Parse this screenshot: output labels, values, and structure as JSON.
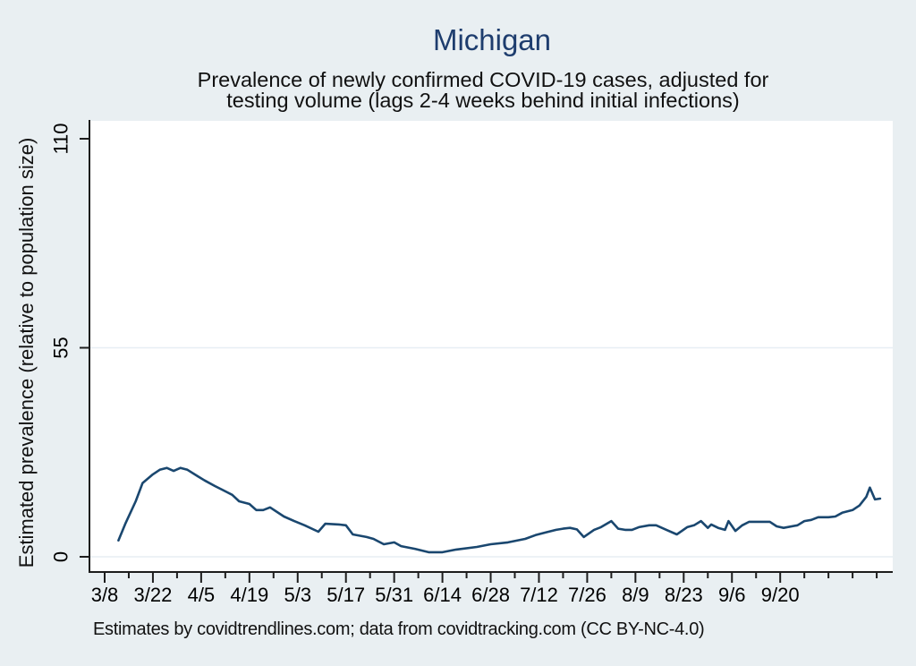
{
  "page": {
    "background_color": "#e9eff2",
    "plot_background_color": "#ffffff",
    "axis_color": "#1d1d1d",
    "grid_color": "#e7eef4"
  },
  "header": {
    "title": "Michigan",
    "title_color": "#1e3d6e",
    "subtitle_line1": "Prevalence of newly confirmed COVID-19 cases, adjusted for",
    "subtitle_line2": "testing volume (lags 2-4 weeks behind initial infections)"
  },
  "y_axis": {
    "label": "Estimated prevalence (relative to population size)",
    "tick_labels": [
      "0",
      "55",
      "110"
    ],
    "tick_values": [
      0,
      55,
      110
    ]
  },
  "x_axis": {
    "tick_labels": [
      "3/8",
      "3/22",
      "4/5",
      "4/19",
      "5/3",
      "5/17",
      "5/31",
      "6/14",
      "6/28",
      "7/12",
      "7/26",
      "8/9",
      "8/23",
      "9/6",
      "9/20"
    ],
    "tick_days": [
      0,
      14,
      28,
      42,
      56,
      70,
      84,
      98,
      112,
      126,
      140,
      154,
      168,
      182,
      196
    ]
  },
  "caption": {
    "text": "Estimates by covidtrendlines.com; data from covidtracking.com (CC BY-NC-4.0)"
  },
  "chart_data": {
    "type": "line",
    "title": "Michigan",
    "subtitle": "Prevalence of newly confirmed COVID-19 cases, adjusted for testing volume (lags 2-4 weeks behind initial infections)",
    "xlabel": "",
    "ylabel": "Estimated prevalence (relative to population size)",
    "source_note": "Estimates by covidtrendlines.com; data from covidtracking.com (CC BY-NC-4.0)",
    "x_unit": "days since 3/8",
    "x_tick_labels": [
      "3/8",
      "3/22",
      "4/5",
      "4/19",
      "5/3",
      "5/17",
      "5/31",
      "6/14",
      "6/28",
      "7/12",
      "7/26",
      "8/9",
      "8/23",
      "9/6",
      "9/20"
    ],
    "x_tick_days": [
      0,
      14,
      28,
      42,
      56,
      70,
      84,
      98,
      112,
      126,
      140,
      154,
      168,
      182,
      196
    ],
    "x_minor_step_days": 7,
    "x_minor_last_day": 224,
    "y_tick_labels": [
      "0",
      "55",
      "110"
    ],
    "y_ticks": [
      0,
      55,
      110
    ],
    "grid_values": [
      0,
      55
    ],
    "ylim": [
      -4,
      115
    ],
    "xlim_days": [
      -4.4,
      228.7
    ],
    "legend": "none",
    "line_color": "#1a476f",
    "series": [
      {
        "name": "Estimated prevalence (relative to population size)",
        "points": [
          [
            4,
            4.3
          ],
          [
            6,
            8.7
          ],
          [
            9,
            14.6
          ],
          [
            11,
            19.4
          ],
          [
            14,
            21.7
          ],
          [
            16,
            22.9
          ],
          [
            18,
            23.4
          ],
          [
            20,
            22.6
          ],
          [
            22,
            23.4
          ],
          [
            24,
            22.9
          ],
          [
            27,
            21.2
          ],
          [
            29,
            20.1
          ],
          [
            32,
            18.6
          ],
          [
            34,
            17.7
          ],
          [
            37,
            16.3
          ],
          [
            39,
            14.6
          ],
          [
            42,
            13.9
          ],
          [
            44,
            12.3
          ],
          [
            46,
            12.3
          ],
          [
            48,
            13.0
          ],
          [
            52,
            10.6
          ],
          [
            55,
            9.4
          ],
          [
            58,
            8.3
          ],
          [
            62,
            6.6
          ],
          [
            64,
            8.7
          ],
          [
            68,
            8.5
          ],
          [
            70,
            8.3
          ],
          [
            72,
            5.9
          ],
          [
            76,
            5.2
          ],
          [
            78,
            4.7
          ],
          [
            81,
            3.3
          ],
          [
            84,
            3.8
          ],
          [
            86,
            2.8
          ],
          [
            90,
            2.1
          ],
          [
            94,
            1.2
          ],
          [
            98,
            1.2
          ],
          [
            102,
            1.9
          ],
          [
            108,
            2.6
          ],
          [
            112,
            3.3
          ],
          [
            117,
            3.8
          ],
          [
            122,
            4.7
          ],
          [
            125,
            5.7
          ],
          [
            128,
            6.4
          ],
          [
            131,
            7.1
          ],
          [
            133,
            7.4
          ],
          [
            135,
            7.6
          ],
          [
            137,
            7.2
          ],
          [
            139,
            5.2
          ],
          [
            142,
            7.1
          ],
          [
            144,
            7.8
          ],
          [
            147,
            9.4
          ],
          [
            149,
            7.4
          ],
          [
            151,
            7.1
          ],
          [
            153,
            7.1
          ],
          [
            155,
            7.8
          ],
          [
            158,
            8.3
          ],
          [
            160,
            8.3
          ],
          [
            163,
            7.1
          ],
          [
            166,
            5.9
          ],
          [
            169,
            7.8
          ],
          [
            171,
            8.3
          ],
          [
            173,
            9.4
          ],
          [
            175,
            7.6
          ],
          [
            176,
            8.5
          ],
          [
            178,
            7.6
          ],
          [
            180,
            7.1
          ],
          [
            181,
            9.4
          ],
          [
            183,
            6.8
          ],
          [
            185,
            8.3
          ],
          [
            187,
            9.2
          ],
          [
            190,
            9.2
          ],
          [
            193,
            9.2
          ],
          [
            195,
            8.0
          ],
          [
            197,
            7.6
          ],
          [
            201,
            8.3
          ],
          [
            203,
            9.4
          ],
          [
            205,
            9.7
          ],
          [
            207,
            10.4
          ],
          [
            210,
            10.4
          ],
          [
            212,
            10.6
          ],
          [
            214,
            11.6
          ],
          [
            217,
            12.3
          ],
          [
            219,
            13.5
          ],
          [
            221,
            15.8
          ],
          [
            222,
            18.2
          ],
          [
            223.5,
            15.1
          ],
          [
            225,
            15.3
          ]
        ]
      }
    ]
  }
}
